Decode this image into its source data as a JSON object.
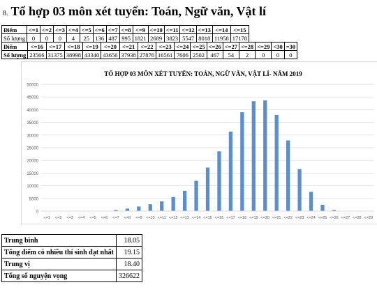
{
  "heading": {
    "number": "8.",
    "text": "Tổ hợp 03 môn xét tuyển: Toán, Ngữ văn, Vật lí"
  },
  "table1": {
    "row_header": "Điểm",
    "row_label": "Số lượng",
    "cols": [
      "<=1",
      "<=2",
      "<=3",
      "<=4",
      "<=5",
      "<=6",
      "<=7",
      "<=8",
      "<=9",
      "<=10",
      "<=11",
      "<=12",
      "<=13",
      "<=14",
      "<=15"
    ],
    "vals": [
      "0",
      "0",
      "0",
      "4",
      "25",
      "136",
      "487",
      "995",
      "1821",
      "2689",
      "3823",
      "5547",
      "8018",
      "11958",
      "17178"
    ]
  },
  "table2": {
    "row_header": "Điểm",
    "row_label": "Số lượng",
    "cols": [
      "<=16",
      "<=17",
      "<=18",
      "<=19",
      "<=20",
      "<=21",
      "<=22",
      "<=23",
      "<=24",
      "<=25",
      "<=26",
      "<=27",
      "<=28",
      "<=29",
      "<30",
      "=30"
    ],
    "vals": [
      "23566",
      "31375",
      "38998",
      "43340",
      "43656",
      "37938",
      "27876",
      "16561",
      "7606",
      "2502",
      "467",
      "54",
      "2",
      "0",
      "0",
      "0"
    ]
  },
  "chart_data": {
    "type": "bar",
    "title": "TỔ HỢP 03 MÔN XÉT TUYỂN: TOÁN, NGỮ VĂN, VẬT LÍ- NĂM 2019",
    "categories": [
      "<=1",
      "<=2",
      "<=3",
      "<=4",
      "<=5",
      "<=6",
      "<=7",
      "<=8",
      "<=9",
      "<=10",
      "<=11",
      "<=12",
      "<=13",
      "<=14",
      "<=15",
      "<=16",
      "<=17",
      "<=18",
      "<=19",
      "<=20",
      "<=21",
      "<=22",
      "<=23",
      "<=24",
      "<=25",
      "<=26",
      "<=27",
      "<=28",
      "<=29"
    ],
    "values": [
      0,
      0,
      0,
      4,
      25,
      136,
      487,
      995,
      1821,
      2689,
      3823,
      5547,
      8018,
      11958,
      17178,
      23566,
      31375,
      38998,
      43340,
      43656,
      37938,
      27876,
      16561,
      7606,
      2502,
      467,
      54,
      2,
      0
    ],
    "yticks": [
      "0",
      "5000",
      "10000",
      "15000",
      "20000",
      "25000",
      "30000",
      "35000",
      "40000",
      "45000",
      "50000"
    ],
    "ylim": [
      0,
      50000
    ],
    "bar_color": "#5b8dd1",
    "grid": true
  },
  "stats": [
    {
      "label": "Trung bình",
      "value": "18.05"
    },
    {
      "label": "Tổng điểm có nhiều thí sinh đạt nhất",
      "value": "19.15"
    },
    {
      "label": "Trung vị",
      "value": "18.40"
    },
    {
      "label": "Tổng số nguyện vọng",
      "value": "326622"
    }
  ]
}
